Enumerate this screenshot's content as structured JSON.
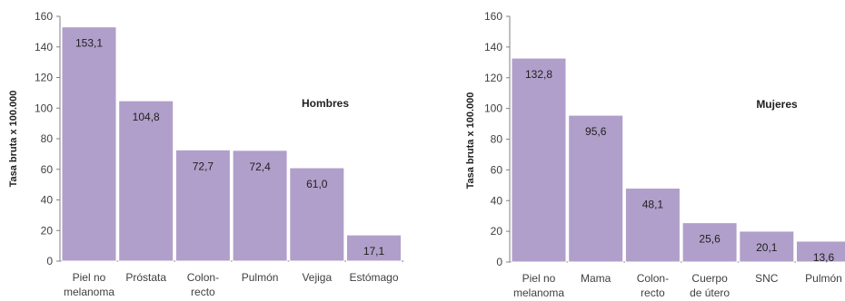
{
  "chart_data": [
    {
      "type": "bar",
      "title": "Hombres",
      "ylabel": "Tasa bruta x 100.000",
      "xlabel": "",
      "ylim": [
        0,
        160
      ],
      "yticks": [
        0,
        20,
        40,
        60,
        80,
        100,
        120,
        140,
        160
      ],
      "categories": [
        [
          "Piel no",
          "melanoma"
        ],
        [
          "Próstata"
        ],
        [
          "Colon-",
          "recto"
        ],
        [
          "Pulmón"
        ],
        [
          "Vejiga"
        ],
        [
          "Estómago"
        ]
      ],
      "values": [
        153.1,
        104.8,
        72.7,
        72.4,
        61.0,
        17.1
      ],
      "value_labels": [
        "153,1",
        "104,8",
        "72,7",
        "72,4",
        "61,0",
        "17,1"
      ],
      "bar_color": "#b09fca",
      "grid": false,
      "legend": "none"
    },
    {
      "type": "bar",
      "title": "Mujeres",
      "ylabel": "Tasa bruta x 100.000",
      "xlabel": "",
      "ylim": [
        0,
        160
      ],
      "yticks": [
        0,
        20,
        40,
        60,
        80,
        100,
        120,
        140,
        160
      ],
      "categories": [
        [
          "Piel no",
          "melanoma"
        ],
        [
          "Mama"
        ],
        [
          "Colon-",
          "recto"
        ],
        [
          "Cuerpo",
          "de útero"
        ],
        [
          "SNC"
        ],
        [
          "Pulmón"
        ]
      ],
      "values": [
        132.8,
        95.6,
        48.1,
        25.6,
        20.1,
        13.6
      ],
      "value_labels": [
        "132,8",
        "95,6",
        "48,1",
        "25,6",
        "20,1",
        "13,6"
      ],
      "bar_color": "#b09fca",
      "grid": false,
      "legend": "none"
    }
  ]
}
